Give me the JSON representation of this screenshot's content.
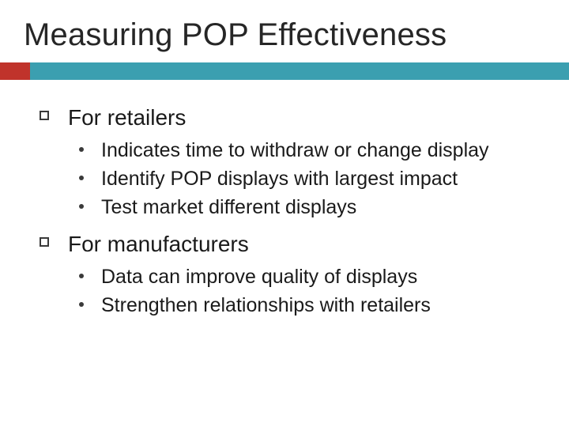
{
  "colors": {
    "teal": "#3b9fb0",
    "red": "#c0332b",
    "text": "#1a1a1a",
    "background": "#ffffff"
  },
  "typography": {
    "title_fontsize": 40,
    "level1_fontsize": 28,
    "level2_fontsize": 25,
    "font_family": "Arial"
  },
  "slide": {
    "title": "Measuring POP Effectiveness",
    "sections": [
      {
        "heading": "For retailers",
        "items": [
          "Indicates time to withdraw or change display",
          "Identify POP displays with largest impact",
          "Test market different displays"
        ]
      },
      {
        "heading": "For manufacturers",
        "items": [
          "Data can improve quality of displays",
          "Strengthen relationships with retailers"
        ]
      }
    ]
  }
}
